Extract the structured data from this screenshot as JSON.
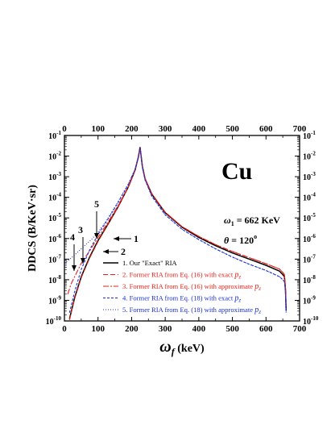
{
  "chart_data": {
    "type": "line",
    "xlabel": "ω",
    "xlabel_sub": "f",
    "xlabel_unit": " (keV)",
    "ylabel": "DDCS (B/KeV·sr)",
    "xlim": [
      0,
      700
    ],
    "ylim_log10": [
      -10,
      -1
    ],
    "x_ticks": [
      0,
      100,
      200,
      300,
      400,
      500,
      600,
      700
    ],
    "y_tick_labels": [
      {
        "base": "10",
        "exp": "-1"
      },
      {
        "base": "10",
        "exp": "-2"
      },
      {
        "base": "10",
        "exp": "-3"
      },
      {
        "base": "10",
        "exp": "-4"
      },
      {
        "base": "10",
        "exp": "-5"
      },
      {
        "base": "10",
        "exp": "-6"
      },
      {
        "base": "10",
        "exp": "-7"
      },
      {
        "base": "10",
        "exp": "-8"
      },
      {
        "base": "10",
        "exp": "-9"
      },
      {
        "base": "10",
        "exp": "-10"
      }
    ],
    "mirror_axes": true,
    "annotations": {
      "element": "Cu",
      "energy": {
        "sym": "ω",
        "sub": "1",
        "text": " = 662 KeV"
      },
      "angle": {
        "sym": "θ",
        "text": " = 120",
        "sup": "o"
      }
    },
    "callouts": [
      "1",
      "2",
      "3",
      "4",
      "5"
    ],
    "series": [
      {
        "name": "1. Our \"Exact\" RIA",
        "color": "#000000",
        "dash": "solid",
        "x": [
          15,
          30,
          50,
          75,
          100,
          130,
          160,
          190,
          210,
          220,
          225,
          228,
          232,
          240,
          260,
          300,
          350,
          400,
          450,
          500,
          550,
          600,
          640,
          650,
          655,
          658,
          660
        ],
        "y": [
          -9.9,
          -8.9,
          -7.85,
          -6.9,
          -6.1,
          -5.3,
          -4.45,
          -3.5,
          -2.7,
          -2.05,
          -1.58,
          -1.95,
          -2.5,
          -3.1,
          -3.85,
          -4.75,
          -5.45,
          -5.95,
          -6.35,
          -6.7,
          -7.0,
          -7.3,
          -7.58,
          -7.75,
          -7.85,
          -8.5,
          -9.5
        ]
      },
      {
        "name": "2. Former RIA from Eq. (16) with exact",
        "name_sub": "z",
        "color": "#e8201a",
        "dash": "6,3",
        "x": [
          15,
          30,
          50,
          75,
          100,
          130,
          160,
          190,
          210,
          220,
          225,
          228,
          232,
          240,
          260,
          300,
          350,
          400,
          450,
          500,
          550,
          600,
          640,
          650,
          655,
          658,
          660
        ],
        "y": [
          -9.95,
          -8.95,
          -7.9,
          -6.95,
          -6.15,
          -5.32,
          -4.47,
          -3.5,
          -2.7,
          -2.05,
          -1.58,
          -1.95,
          -2.5,
          -3.08,
          -3.82,
          -4.72,
          -5.42,
          -5.9,
          -6.3,
          -6.63,
          -6.93,
          -7.22,
          -7.48,
          -7.65,
          -7.75,
          -8.4,
          -9.4
        ]
      },
      {
        "name": "3. Former RIA from Eq. (16) with approximate",
        "name_sub": "z",
        "color": "#e8201a",
        "dash": "7,2,2,2",
        "x": [
          10,
          20,
          35,
          50,
          75,
          100,
          130,
          160,
          190,
          210,
          220,
          225,
          228,
          232,
          240,
          260,
          300,
          350,
          400,
          450,
          500,
          550,
          600,
          640,
          650,
          655,
          658,
          660
        ],
        "y": [
          -8.7,
          -8.2,
          -7.7,
          -7.2,
          -6.6,
          -5.95,
          -5.2,
          -4.4,
          -3.48,
          -2.7,
          -2.05,
          -1.58,
          -1.95,
          -2.5,
          -3.08,
          -3.82,
          -4.72,
          -5.42,
          -5.9,
          -6.3,
          -6.63,
          -6.93,
          -7.22,
          -7.48,
          -7.65,
          -7.75,
          -8.4,
          -9.4
        ]
      },
      {
        "name": "4. Former RIA from Eq. (18) with exact",
        "name_sub": "z",
        "color": "#1a2fd6",
        "dash": "3,2",
        "x": [
          15,
          30,
          50,
          75,
          100,
          130,
          160,
          190,
          210,
          220,
          225,
          228,
          232,
          240,
          260,
          300,
          350,
          400,
          450,
          500,
          550,
          600,
          640,
          650,
          655,
          658,
          660
        ],
        "y": [
          -9.6,
          -8.6,
          -7.5,
          -6.55,
          -5.8,
          -5.05,
          -4.25,
          -3.38,
          -2.65,
          -2.03,
          -1.58,
          -1.97,
          -2.55,
          -3.15,
          -3.95,
          -4.85,
          -5.55,
          -6.05,
          -6.5,
          -6.9,
          -7.25,
          -7.55,
          -7.85,
          -8.0,
          -8.1,
          -8.6,
          -9.6
        ]
      },
      {
        "name": "5. Former RIA from Eq. (18) with approximate",
        "name_sub": "z",
        "color": "#1a2fd6",
        "dash": "1,2",
        "x": [
          0,
          20,
          40,
          60,
          80,
          100,
          120,
          140,
          160,
          190,
          210,
          220,
          225,
          228,
          232,
          240,
          260,
          300,
          350,
          400,
          450,
          500,
          550,
          600,
          640,
          650,
          655,
          658,
          660
        ],
        "y": [
          -7.2,
          -6.95,
          -6.65,
          -6.35,
          -6.05,
          -5.7,
          -5.25,
          -4.75,
          -4.2,
          -3.35,
          -2.65,
          -2.03,
          -1.58,
          -1.97,
          -2.55,
          -3.15,
          -3.95,
          -4.85,
          -5.55,
          -6.05,
          -6.5,
          -6.9,
          -7.25,
          -7.55,
          -7.85,
          -8.0,
          -8.1,
          -8.6,
          -9.6
        ]
      }
    ]
  }
}
